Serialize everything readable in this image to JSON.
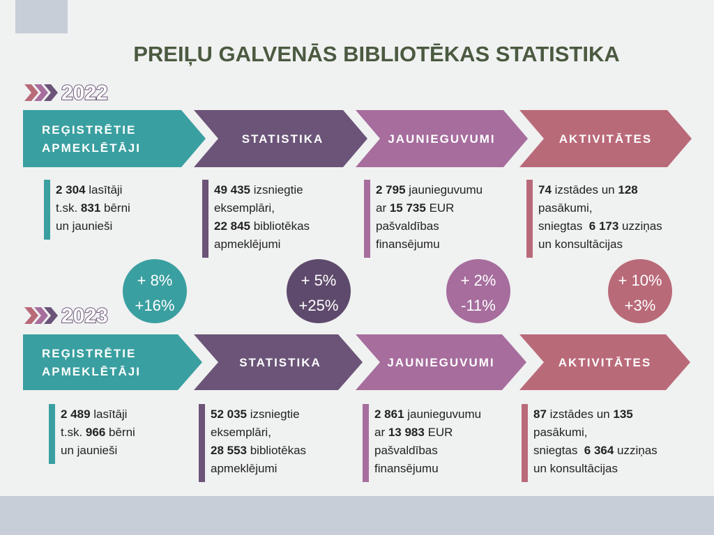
{
  "title": "PREIĻU GALVENĀS BIBLIOTĒKAS STATISTIKA",
  "years": [
    {
      "year": "2022",
      "headers": [
        [
          "REĢISTRĒTIE",
          "APMEKLĒTĀJI"
        ],
        [
          "STATISTIKA"
        ],
        [
          "JAUNIEGUVUMI"
        ],
        [
          "AKTIVITĀTES"
        ]
      ],
      "blocks": [
        {
          "lines": [
            [
              {
                "text": "2 304",
                "bold": true
              },
              {
                "text": " lasītāji"
              }
            ],
            [
              {
                "text": "t.sk. "
              },
              {
                "text": "831",
                "bold": true
              },
              {
                "text": " bērni"
              }
            ],
            [
              {
                "text": "un jaunieši"
              }
            ]
          ]
        },
        {
          "lines": [
            [
              {
                "text": "49 435",
                "bold": true
              },
              {
                "text": " izsniegtie"
              }
            ],
            [
              {
                "text": "eksemplāri,"
              }
            ],
            [
              {
                "text": "22 845",
                "bold": true
              },
              {
                "text": " bibliotēkas"
              }
            ],
            [
              {
                "text": "apmeklējumi"
              }
            ]
          ]
        },
        {
          "lines": [
            [
              {
                "text": "2 795",
                "bold": true
              },
              {
                "text": " jaunieguvumu"
              }
            ],
            [
              {
                "text": "ar "
              },
              {
                "text": "15 735",
                "bold": true
              },
              {
                "text": " EUR"
              }
            ],
            [
              {
                "text": "pašvaldības"
              }
            ],
            [
              {
                "text": "finansējumu"
              }
            ]
          ]
        },
        {
          "lines": [
            [
              {
                "text": "74",
                "bold": true
              },
              {
                "text": " izstādes un "
              },
              {
                "text": "128",
                "bold": true
              }
            ],
            [
              {
                "text": "pasākumi,"
              }
            ],
            [
              {
                "text": "sniegtas  "
              },
              {
                "text": "6 173",
                "bold": true
              },
              {
                "text": " uzziņas"
              }
            ],
            [
              {
                "text": "un konsultācijas"
              }
            ]
          ]
        }
      ]
    },
    {
      "year": "2023",
      "headers": [
        [
          "REĢISTRĒTIE",
          "APMEKLĒTĀJI"
        ],
        [
          "STATISTIKA"
        ],
        [
          "JAUNIEGUVUMI"
        ],
        [
          "AKTIVITĀTES"
        ]
      ],
      "blocks": [
        {
          "lines": [
            [
              {
                "text": "2 489",
                "bold": true
              },
              {
                "text": " lasītāji"
              }
            ],
            [
              {
                "text": "t.sk. "
              },
              {
                "text": "966",
                "bold": true
              },
              {
                "text": " bērni"
              }
            ],
            [
              {
                "text": "un jaunieši"
              }
            ]
          ]
        },
        {
          "lines": [
            [
              {
                "text": "52 035",
                "bold": true
              },
              {
                "text": " izsniegtie"
              }
            ],
            [
              {
                "text": "eksemplāri,"
              }
            ],
            [
              {
                "text": "28 553",
                "bold": true
              },
              {
                "text": " bibliotēkas"
              }
            ],
            [
              {
                "text": "apmeklējumi"
              }
            ]
          ]
        },
        {
          "lines": [
            [
              {
                "text": "2 861",
                "bold": true
              },
              {
                "text": " jaunieguvumu"
              }
            ],
            [
              {
                "text": "ar "
              },
              {
                "text": "13 983",
                "bold": true
              },
              {
                "text": " EUR"
              }
            ],
            [
              {
                "text": "pašvaldības"
              }
            ],
            [
              {
                "text": "finansējumu"
              }
            ]
          ]
        },
        {
          "lines": [
            [
              {
                "text": "87",
                "bold": true
              },
              {
                "text": " izstādes un "
              },
              {
                "text": "135",
                "bold": true
              }
            ],
            [
              {
                "text": "pasākumi,"
              }
            ],
            [
              {
                "text": "sniegtas  "
              },
              {
                "text": "6 364",
                "bold": true
              },
              {
                "text": " uzziņas"
              }
            ],
            [
              {
                "text": "un konsultācijas"
              }
            ]
          ]
        }
      ]
    }
  ],
  "changes": [
    [
      "+ 8%",
      "+16%"
    ],
    [
      "+ 5%",
      "+25%"
    ],
    [
      "+ 2%",
      "-11%"
    ],
    [
      "+ 10%",
      "+3%"
    ]
  ]
}
